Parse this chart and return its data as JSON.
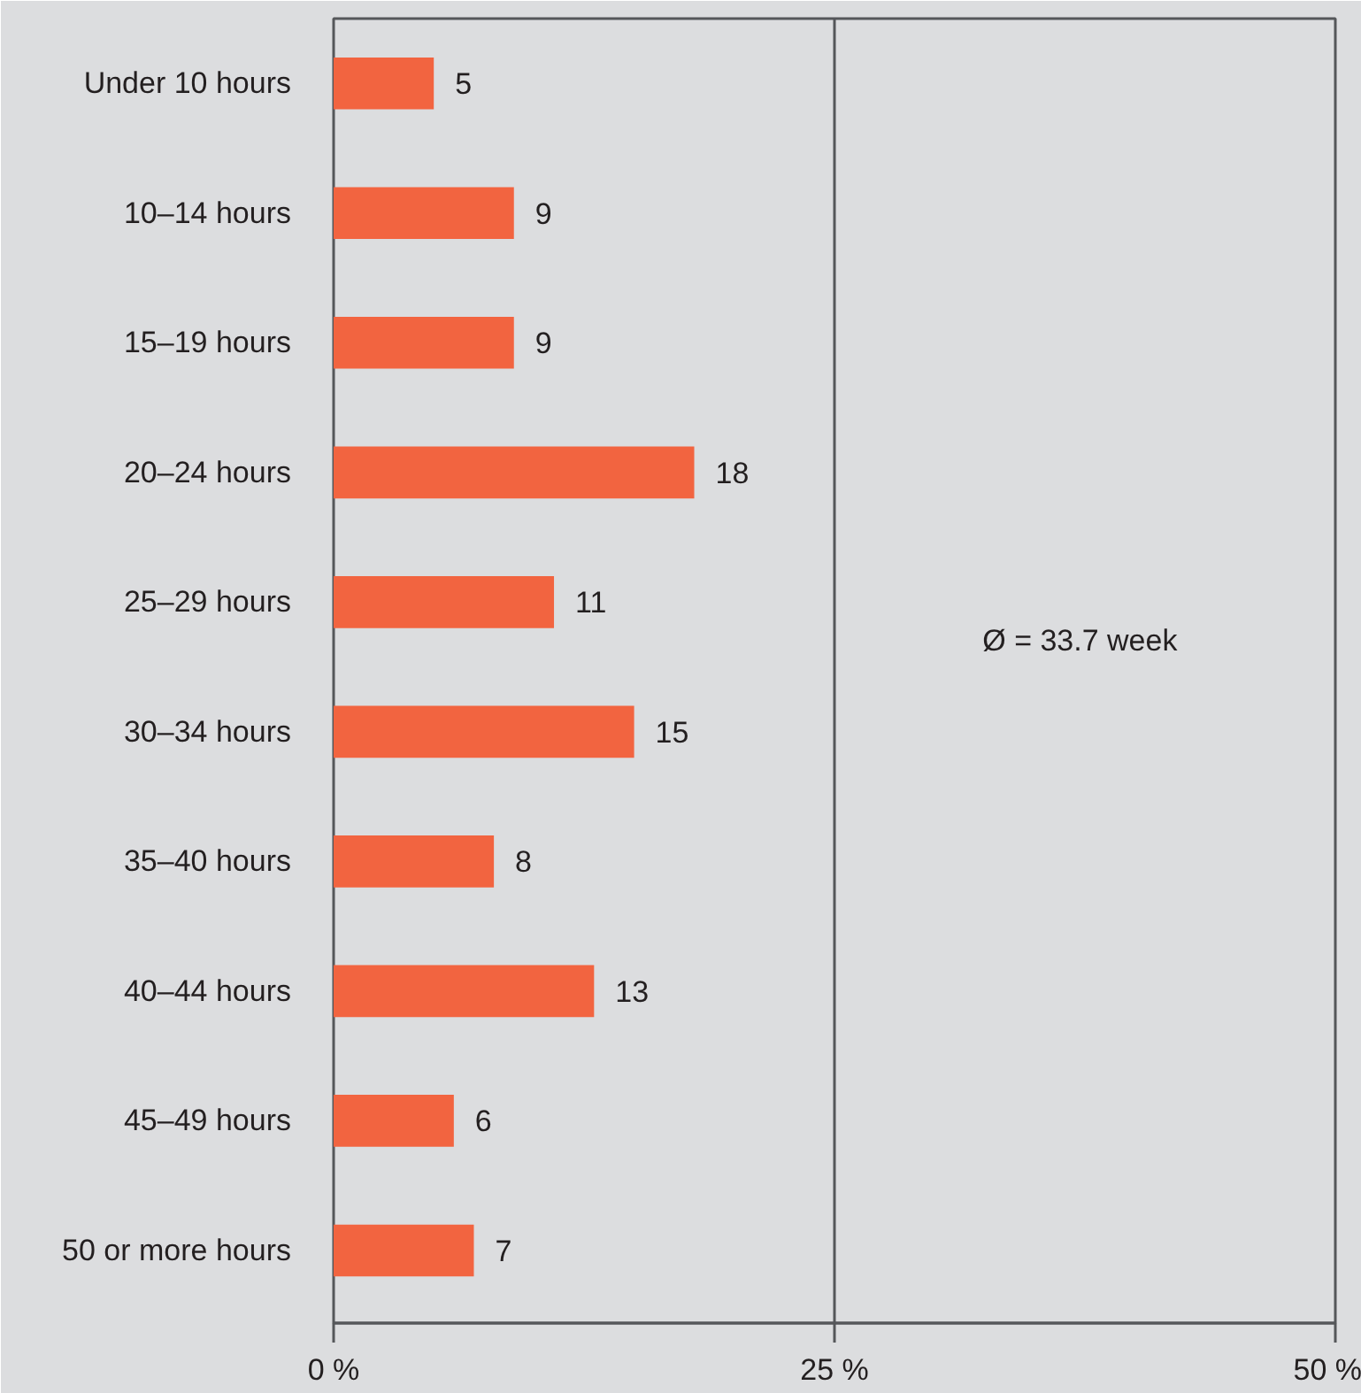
{
  "chart_data": {
    "type": "bar",
    "orientation": "horizontal",
    "categories": [
      "Under 10 hours",
      "10–14 hours",
      "15–19 hours",
      "20–24 hours",
      "25–29 hours",
      "30–34 hours",
      "35–40 hours",
      "40–44 hours",
      "45–49 hours",
      "50 or more hours"
    ],
    "values": [
      5,
      9,
      9,
      18,
      11,
      15,
      8,
      13,
      6,
      7
    ],
    "color": "#f26440",
    "xlim": [
      0,
      50
    ],
    "xticks": [
      {
        "value": 0,
        "label": "0 %"
      },
      {
        "value": 25,
        "label": "25 %"
      },
      {
        "value": 50,
        "label": "50 %"
      }
    ],
    "grid": "x",
    "data_labels": true,
    "annotations": [
      "Ø = 33.7 week"
    ]
  }
}
